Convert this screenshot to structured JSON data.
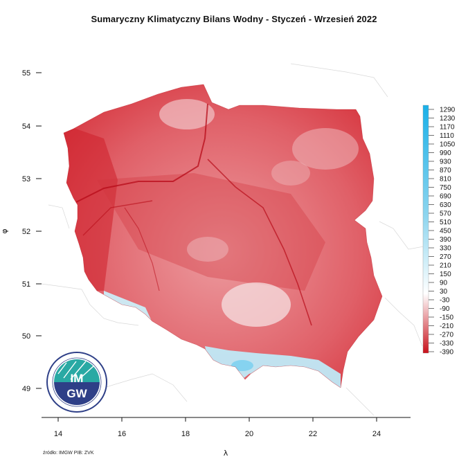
{
  "title": "Sumaryczny Klimatyczny Bilans Wodny - Styczeń - Wrzesień 2022",
  "axes": {
    "x_label": "λ",
    "y_label": "φ",
    "x_ticks": [
      "14",
      "16",
      "18",
      "20",
      "22",
      "24"
    ],
    "y_ticks": [
      "55",
      "54",
      "53",
      "52",
      "51",
      "50",
      "49"
    ]
  },
  "legend": {
    "labels": [
      "1290",
      "1230",
      "1170",
      "1110",
      "1050",
      "990",
      "930",
      "870",
      "810",
      "750",
      "690",
      "630",
      "570",
      "510",
      "450",
      "390",
      "330",
      "270",
      "210",
      "150",
      "90",
      "30",
      "-30",
      "-90",
      "-150",
      "-210",
      "-270",
      "-330",
      "-390"
    ],
    "color_high": "#1ab0e8",
    "color_zero": "#ffffff",
    "color_low": "#c8101a"
  },
  "logo": {
    "text_top": "IM",
    "text_bottom": "GW"
  },
  "source": "źródło: IMGW PIB: ZVK"
}
